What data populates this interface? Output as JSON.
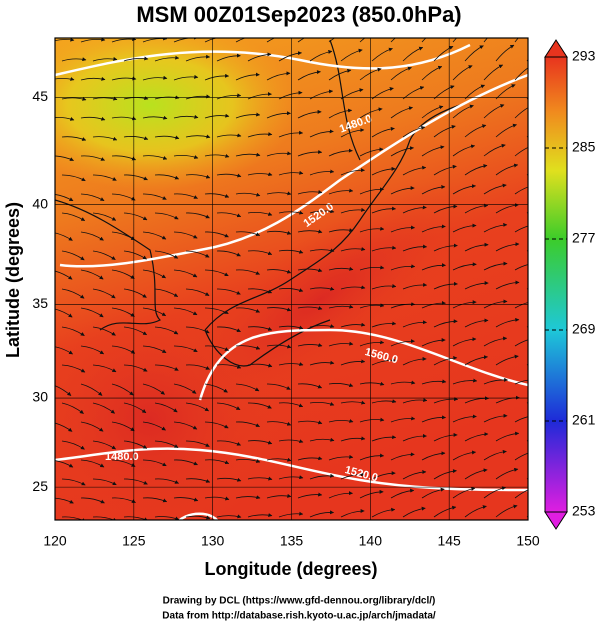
{
  "title": "MSM 00Z01Sep2023 (850.0hPa)",
  "map": {
    "xlabel": "Longitude (degrees)",
    "ylabel": "Latitude  (degrees)",
    "xlim": [
      120,
      150
    ],
    "ylim": [
      23.1,
      47.6
    ],
    "xticks": [
      120,
      125,
      130,
      135,
      140,
      145,
      150
    ],
    "yticks": [
      25,
      30,
      35,
      40,
      45
    ],
    "contour_labels": [
      "1480.0",
      "1520.0",
      "1560.0",
      "1480.0",
      "1520.0"
    ]
  },
  "colorbar": {
    "lim": [
      253,
      293
    ],
    "ticks": [
      253,
      261,
      269,
      277,
      285,
      293
    ]
  },
  "credits": [
    "Drawing by DCL (https://www.gfd-dennou.org/library/dcl/)",
    "Data from http://database.rish.kyoto-u.ac.jp/arch/jmadata/"
  ]
}
